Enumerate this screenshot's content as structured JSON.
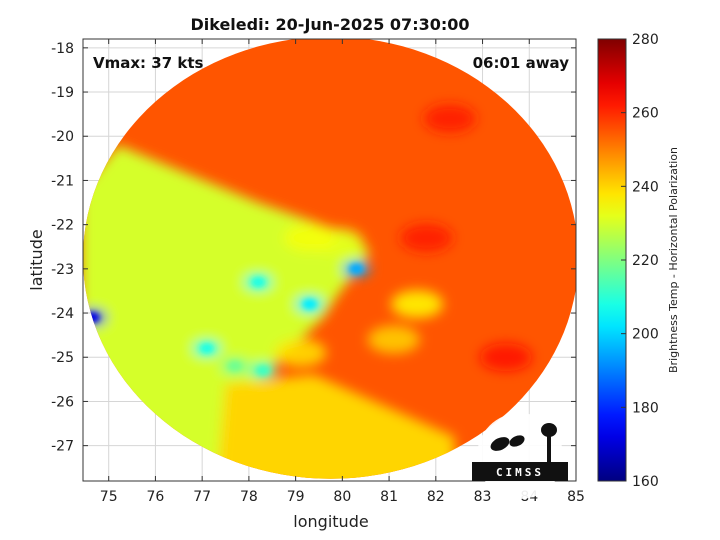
{
  "chart_data": {
    "type": "heatmap",
    "title": "Dikeledi: 20-Jun-2025 07:30:00",
    "xlabel": "longitude",
    "ylabel": "latitude",
    "xlim": [
      74.45,
      85
    ],
    "ylim": [
      -27.8,
      -17.8
    ],
    "xticks": [
      75,
      76,
      77,
      78,
      79,
      80,
      81,
      82,
      83,
      84,
      85
    ],
    "yticks": [
      -18,
      -19,
      -20,
      -21,
      -22,
      -23,
      -24,
      -25,
      -26,
      -27
    ],
    "grid": true,
    "annotations": {
      "left": "Vmax: 37 kts",
      "right": "06:01 away"
    },
    "colorbar": {
      "label": "Brightness Temp - Horizontal Polarization",
      "range": [
        160,
        280
      ],
      "ticks": [
        280,
        260,
        240,
        220,
        200,
        180,
        160
      ],
      "colormap": "jet"
    },
    "swath": {
      "center_lon": 79.75,
      "center_lat": -22.75,
      "radius_lon": 5.3,
      "radius_lat": 5.0,
      "background_tb": 255
    },
    "features": [
      {
        "name": "western swath segment",
        "polygon": [
          [
            74.4,
            -28
          ],
          [
            77.3,
            -28
          ],
          [
            78.3,
            -25.4
          ],
          [
            79.6,
            -24.1
          ],
          [
            79.9,
            -23.6
          ],
          [
            80.6,
            -22.6
          ],
          [
            80.1,
            -22.2
          ],
          [
            79.3,
            -21.9
          ],
          [
            78.2,
            -21.5
          ],
          [
            75.2,
            -20.2
          ],
          [
            74.4,
            -21.2
          ]
        ],
        "tb": 230
      },
      {
        "name": "southern swath segment",
        "polygon": [
          [
            77.5,
            -25.6
          ],
          [
            79.4,
            -25.4
          ],
          [
            82.4,
            -26.8
          ],
          [
            82.4,
            -28
          ],
          [
            77.3,
            -28
          ]
        ],
        "tb": 240
      },
      {
        "name": "rain band core",
        "lon": 80.3,
        "lat": -23.0,
        "tb": 195
      },
      {
        "name": "convective cluster",
        "lon": 79.3,
        "lat": -23.8,
        "tb": 203
      },
      {
        "name": "convective cluster",
        "lon": 78.2,
        "lat": -23.3,
        "tb": 208
      },
      {
        "name": "convective cluster",
        "lon": 77.1,
        "lat": -24.8,
        "tb": 208
      },
      {
        "name": "convective cluster",
        "lon": 78.3,
        "lat": -25.3,
        "tb": 212
      },
      {
        "name": "convective cluster",
        "lon": 77.7,
        "lat": -25.2,
        "tb": 218
      },
      {
        "name": "isolated cell",
        "lon": 74.65,
        "lat": -24.1,
        "tb": 172
      },
      {
        "name": "eye wall arc",
        "lon": 79.9,
        "lat": -22.4,
        "tb": 232
      },
      {
        "name": "eye wall arc",
        "lon": 79.3,
        "lat": -22.3,
        "tb": 234
      },
      {
        "name": "band",
        "lon": 81.6,
        "lat": -23.8,
        "tb": 235
      },
      {
        "name": "band",
        "lon": 81.1,
        "lat": -24.6,
        "tb": 240
      },
      {
        "name": "band",
        "lon": 79.1,
        "lat": -24.9,
        "tb": 238
      },
      {
        "name": "warm area",
        "lon": 81.8,
        "lat": -22.3,
        "tb": 262
      },
      {
        "name": "warm area",
        "lon": 83.5,
        "lat": -25.0,
        "tb": 263
      },
      {
        "name": "warm area",
        "lon": 82.3,
        "lat": -19.6,
        "tb": 262
      }
    ]
  },
  "logo": {
    "text": "CIMSS"
  }
}
